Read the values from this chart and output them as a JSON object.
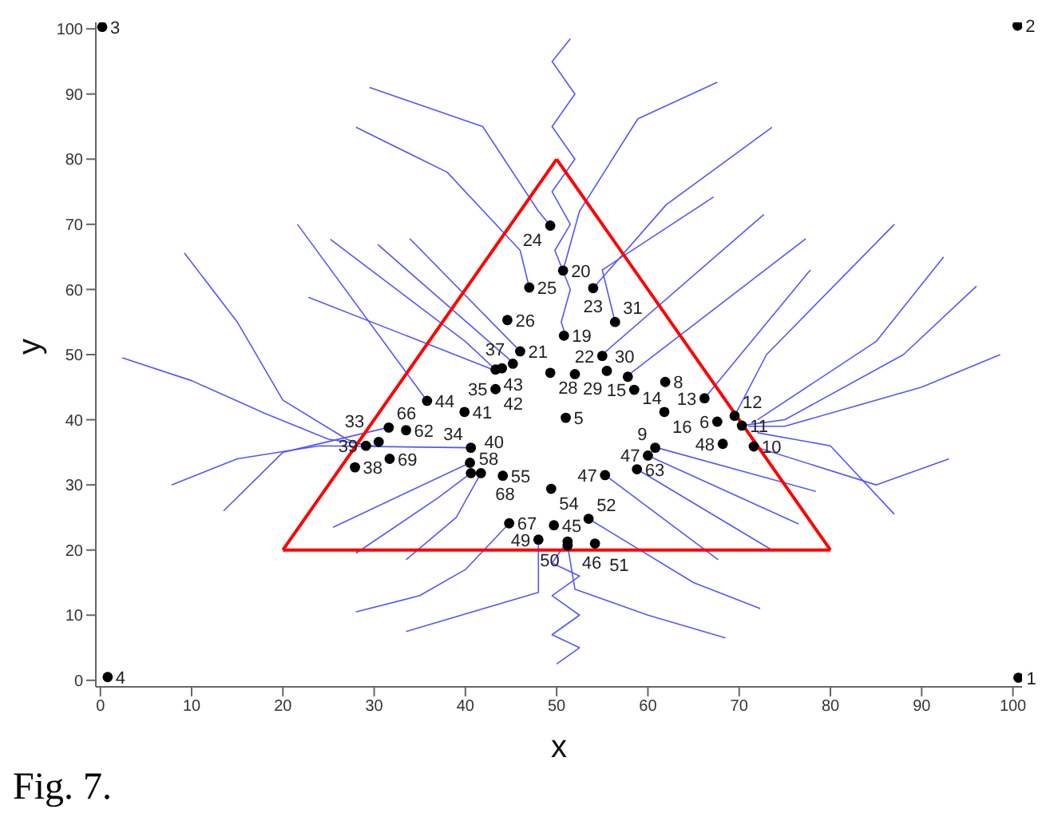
{
  "chart_data": {
    "type": "scatter",
    "xlabel": "x",
    "ylabel": "y",
    "xlim": [
      -0.5,
      101
    ],
    "ylim": [
      -1,
      101
    ],
    "xticks": [
      0,
      10,
      20,
      30,
      40,
      50,
      60,
      70,
      80,
      90,
      100
    ],
    "yticks": [
      0,
      10,
      20,
      30,
      40,
      50,
      60,
      70,
      80,
      90,
      100
    ],
    "grid": false,
    "annotations": [
      "Fig. 7.",
      {
        "text": "1",
        "x": 100.6,
        "y": 0.4
      },
      {
        "text": "2",
        "x": 100.5,
        "y": 100.5
      },
      {
        "text": "3",
        "x": 0.2,
        "y": 100.3
      },
      {
        "text": "4",
        "x": 0.8,
        "y": 0.5
      },
      {
        "text": "24",
        "x": 49.3,
        "y": 69.8
      },
      {
        "text": "20",
        "x": 50.7,
        "y": 62.9
      },
      {
        "text": "25",
        "x": 47,
        "y": 60.3
      },
      {
        "text": "23",
        "x": 54,
        "y": 60.2
      },
      {
        "text": "31",
        "x": 56.4,
        "y": 55
      },
      {
        "text": "26",
        "x": 44.6,
        "y": 55.3
      },
      {
        "text": "19",
        "x": 50.8,
        "y": 52.9
      },
      {
        "text": "21",
        "x": 46,
        "y": 50.5
      },
      {
        "text": "22",
        "x": 55,
        "y": 49.8
      },
      {
        "text": "43",
        "x": 43.3,
        "y": 47.7
      },
      {
        "text": "35",
        "x": 44,
        "y": 47.9
      },
      {
        "text": "37",
        "x": 45.2,
        "y": 48.6
      },
      {
        "text": "28",
        "x": 49.3,
        "y": 47.2
      },
      {
        "text": "29",
        "x": 52,
        "y": 47
      },
      {
        "text": "30",
        "x": 55.5,
        "y": 47.5
      },
      {
        "text": "14",
        "x": 57.8,
        "y": 46.6
      },
      {
        "text": "15",
        "x": 58.5,
        "y": 44.6
      },
      {
        "text": "8",
        "x": 61.9,
        "y": 45.8
      },
      {
        "text": "42",
        "x": 43.3,
        "y": 44.7
      },
      {
        "text": "44",
        "x": 35.8,
        "y": 42.9
      },
      {
        "text": "41",
        "x": 39.9,
        "y": 41.2
      },
      {
        "text": "5",
        "x": 51,
        "y": 40.3
      },
      {
        "text": "13",
        "x": 66.2,
        "y": 43.3
      },
      {
        "text": "16",
        "x": 61.8,
        "y": 41.2
      },
      {
        "text": "12",
        "x": 69.5,
        "y": 40.6
      },
      {
        "text": "6",
        "x": 67.6,
        "y": 39.7
      },
      {
        "text": "11",
        "x": 70.3,
        "y": 39.1
      },
      {
        "text": "48",
        "x": 68.2,
        "y": 36.3
      },
      {
        "text": "10",
        "x": 71.6,
        "y": 35.9
      },
      {
        "text": "9",
        "x": 60.8,
        "y": 35.7
      },
      {
        "text": "47",
        "x": 60,
        "y": 34.5
      },
      {
        "text": "63",
        "x": 58.8,
        "y": 32.4
      },
      {
        "text": "47",
        "x": 55.3,
        "y": 31.5
      },
      {
        "text": "54",
        "x": 49.4,
        "y": 29.4
      },
      {
        "text": "52",
        "x": 53.5,
        "y": 24.8
      },
      {
        "text": "45",
        "x": 49.7,
        "y": 23.8
      },
      {
        "text": "49",
        "x": 48,
        "y": 21.6
      },
      {
        "text": "46",
        "x": 51.2,
        "y": 21.3
      },
      {
        "text": "50",
        "x": 51.2,
        "y": 20.7
      },
      {
        "text": "51",
        "x": 54.2,
        "y": 21
      },
      {
        "text": "67",
        "x": 44.8,
        "y": 24.1
      },
      {
        "text": "55",
        "x": 44.1,
        "y": 31.4
      },
      {
        "text": "58",
        "x": 40.6,
        "y": 31.8
      },
      {
        "text": "68",
        "x": 41.7,
        "y": 31.8
      },
      {
        "text": "40",
        "x": 40.5,
        "y": 33.4
      },
      {
        "text": "34",
        "x": 40.6,
        "y": 35.7
      },
      {
        "text": "66",
        "x": 31.6,
        "y": 38.8
      },
      {
        "text": "62",
        "x": 33.5,
        "y": 38.4
      },
      {
        "text": "33",
        "x": 30.5,
        "y": 36.6
      },
      {
        "text": "39",
        "x": 29.1,
        "y": 36
      },
      {
        "text": "69",
        "x": 31.7,
        "y": 34
      },
      {
        "text": "38",
        "x": 27.9,
        "y": 32.7
      }
    ],
    "series": [
      {
        "type": "line",
        "color": "#5555ff",
        "x": [
          51.5,
          49.5,
          52,
          49.5,
          52,
          49.5,
          51.5,
          49.8,
          51.5,
          50.5,
          51
        ],
        "values": [
          98.5,
          95,
          90,
          85,
          80,
          75,
          70,
          66,
          60,
          55,
          52.9
        ]
      },
      {
        "type": "line",
        "color": "#5555ff",
        "x": [
          51,
          49.5,
          52.5,
          49.5,
          52.5,
          49.5,
          52.5,
          50
        ],
        "values": [
          21,
          18,
          16,
          13,
          10,
          7,
          5,
          2.5
        ]
      },
      {
        "type": "line",
        "color": "#5555ff",
        "x": [
          29.5,
          41.9,
          48,
          49.3
        ],
        "values": [
          91,
          85,
          72,
          69.8
        ]
      },
      {
        "type": "line",
        "color": "#5555ff",
        "x": [
          28,
          38,
          46,
          47
        ],
        "values": [
          84.9,
          78,
          66,
          60.3
        ]
      },
      {
        "type": "line",
        "color": "#5555ff",
        "x": [
          67.6,
          58.9,
          52.5,
          50.7
        ],
        "values": [
          91.8,
          86.2,
          72,
          62.9
        ]
      },
      {
        "type": "line",
        "color": "#5555ff",
        "x": [
          73.6,
          62,
          54
        ],
        "values": [
          84.9,
          73,
          60.2
        ]
      },
      {
        "type": "line",
        "color": "#5555ff",
        "x": [
          67.2,
          55,
          56.4
        ],
        "values": [
          74.2,
          63,
          55
        ]
      },
      {
        "type": "line",
        "color": "#5555ff",
        "x": [
          72.7,
          55
        ],
        "values": [
          71.5,
          50
        ]
      },
      {
        "type": "line",
        "color": "#5555ff",
        "x": [
          77.3,
          58
        ],
        "values": [
          67.8,
          47
        ]
      },
      {
        "type": "line",
        "color": "#5555ff",
        "x": [
          77.8,
          66.2
        ],
        "values": [
          63,
          43.3
        ]
      },
      {
        "type": "line",
        "color": "#5555ff",
        "x": [
          87,
          73,
          69.5
        ],
        "values": [
          70,
          50,
          40.6
        ]
      },
      {
        "type": "line",
        "color": "#5555ff",
        "x": [
          21.6,
          35.8
        ],
        "values": [
          70,
          42.9
        ]
      },
      {
        "type": "line",
        "color": "#5555ff",
        "x": [
          25.2,
          40,
          43.3
        ],
        "values": [
          67.7,
          52,
          47.7
        ]
      },
      {
        "type": "line",
        "color": "#5555ff",
        "x": [
          30.4,
          45.2
        ],
        "values": [
          66.9,
          48.8
        ]
      },
      {
        "type": "line",
        "color": "#5555ff",
        "x": [
          33.9,
          46
        ],
        "values": [
          67.8,
          50.5
        ]
      },
      {
        "type": "line",
        "color": "#5555ff",
        "x": [
          22.8,
          43
        ],
        "values": [
          58.8,
          47.7
        ]
      },
      {
        "type": "line",
        "color": "#5555ff",
        "x": [
          9.2,
          15,
          20,
          27,
          29
        ],
        "values": [
          65.6,
          55,
          43,
          37,
          36
        ]
      },
      {
        "type": "line",
        "color": "#5555ff",
        "x": [
          2.4,
          10,
          18,
          25,
          30
        ],
        "values": [
          49.5,
          46,
          41,
          37,
          36
        ]
      },
      {
        "type": "line",
        "color": "#5555ff",
        "x": [
          7.8,
          15,
          24,
          40.6
        ],
        "values": [
          30,
          34,
          36,
          35.7
        ]
      },
      {
        "type": "line",
        "color": "#5555ff",
        "x": [
          13.5,
          20,
          31.5
        ],
        "values": [
          26,
          35,
          38.8
        ]
      },
      {
        "type": "line",
        "color": "#5555ff",
        "x": [
          25.5,
          40.5
        ],
        "values": [
          23.5,
          33.4
        ]
      },
      {
        "type": "line",
        "color": "#5555ff",
        "x": [
          28,
          37,
          40.6
        ],
        "values": [
          19.5,
          28,
          31.8
        ]
      },
      {
        "type": "line",
        "color": "#5555ff",
        "x": [
          33.5,
          39,
          41.7
        ],
        "values": [
          18.5,
          25,
          31.8
        ]
      },
      {
        "type": "line",
        "color": "#5555ff",
        "x": [
          28,
          35,
          40,
          44.8
        ],
        "values": [
          10.5,
          13,
          17,
          24.1
        ]
      },
      {
        "type": "line",
        "color": "#5555ff",
        "x": [
          33.5,
          48,
          48
        ],
        "values": [
          7.5,
          13.5,
          21.6
        ]
      },
      {
        "type": "line",
        "color": "#5555ff",
        "x": [
          96,
          88,
          75,
          70.3
        ],
        "values": [
          60.5,
          50,
          40,
          39.1
        ]
      },
      {
        "type": "line",
        "color": "#5555ff",
        "x": [
          92.4,
          85,
          72
        ],
        "values": [
          65,
          52,
          40
        ]
      },
      {
        "type": "line",
        "color": "#5555ff",
        "x": [
          98.6,
          90,
          75,
          71
        ],
        "values": [
          50,
          45,
          39,
          39
        ]
      },
      {
        "type": "line",
        "color": "#5555ff",
        "x": [
          87,
          80,
          72
        ],
        "values": [
          25.5,
          36,
          38
        ]
      },
      {
        "type": "line",
        "color": "#5555ff",
        "x": [
          93,
          85,
          71.6
        ],
        "values": [
          34,
          30,
          35.9
        ]
      },
      {
        "type": "line",
        "color": "#5555ff",
        "x": [
          78.4,
          61
        ],
        "values": [
          29,
          35.7
        ]
      },
      {
        "type": "line",
        "color": "#5555ff",
        "x": [
          76.5,
          60
        ],
        "values": [
          24,
          34.5
        ]
      },
      {
        "type": "line",
        "color": "#5555ff",
        "x": [
          73.6,
          58.8
        ],
        "values": [
          20,
          32.4
        ]
      },
      {
        "type": "line",
        "color": "#5555ff",
        "x": [
          67.7,
          55.3
        ],
        "values": [
          18.5,
          31.5
        ]
      },
      {
        "type": "line",
        "color": "#5555ff",
        "x": [
          72.3,
          65,
          53.5
        ],
        "values": [
          11,
          15,
          24.8
        ]
      },
      {
        "type": "line",
        "color": "#5555ff",
        "x": [
          68.5,
          60,
          52,
          51.2
        ],
        "values": [
          6.5,
          10,
          14,
          20.7
        ]
      },
      {
        "type": "line",
        "color": "#ff0000",
        "x": [
          20,
          50
        ],
        "values": [
          20,
          80
        ]
      },
      {
        "type": "line",
        "color": "#ff0000",
        "x": [
          50,
          80
        ],
        "values": [
          80,
          20
        ]
      },
      {
        "type": "line",
        "color": "#ff0000",
        "x": [
          20,
          80
        ],
        "values": [
          20,
          20
        ]
      },
      {
        "color": "#000000",
        "marker": "circle",
        "x": [
          100.6,
          100.5,
          0.2,
          0.8,
          49.3,
          50.7,
          47,
          54,
          56.4,
          44.6,
          50.8,
          46,
          55,
          43.3,
          44,
          45.2,
          49.3,
          52,
          55.5,
          57.8,
          58.5,
          61.9,
          43.3,
          35.8,
          39.9,
          51,
          66.2,
          61.8,
          69.5,
          67.6,
          70.3,
          68.2,
          71.6,
          60.8,
          60,
          58.8,
          55.3,
          49.4,
          53.5,
          49.7,
          48,
          51.2,
          51.2,
          54.2,
          44.8,
          44.1,
          40.6,
          41.7,
          40.5,
          40.6,
          31.6,
          33.5,
          30.5,
          29.1,
          31.7,
          27.9
        ],
        "values": [
          0.4,
          100.5,
          100.3,
          0.5,
          69.8,
          62.9,
          60.3,
          60.2,
          55,
          55.3,
          52.9,
          50.5,
          49.8,
          47.7,
          47.9,
          48.6,
          47.2,
          47,
          47.5,
          46.6,
          44.6,
          45.8,
          44.7,
          42.9,
          41.2,
          40.3,
          43.3,
          41.2,
          40.6,
          39.7,
          39.1,
          36.3,
          35.9,
          35.7,
          34.5,
          32.4,
          31.5,
          29.4,
          24.8,
          23.8,
          21.6,
          21.3,
          20.7,
          21,
          24.1,
          31.4,
          31.8,
          31.8,
          33.4,
          35.7,
          38.8,
          38.4,
          36.6,
          36,
          34,
          32.7
        ]
      }
    ]
  }
}
